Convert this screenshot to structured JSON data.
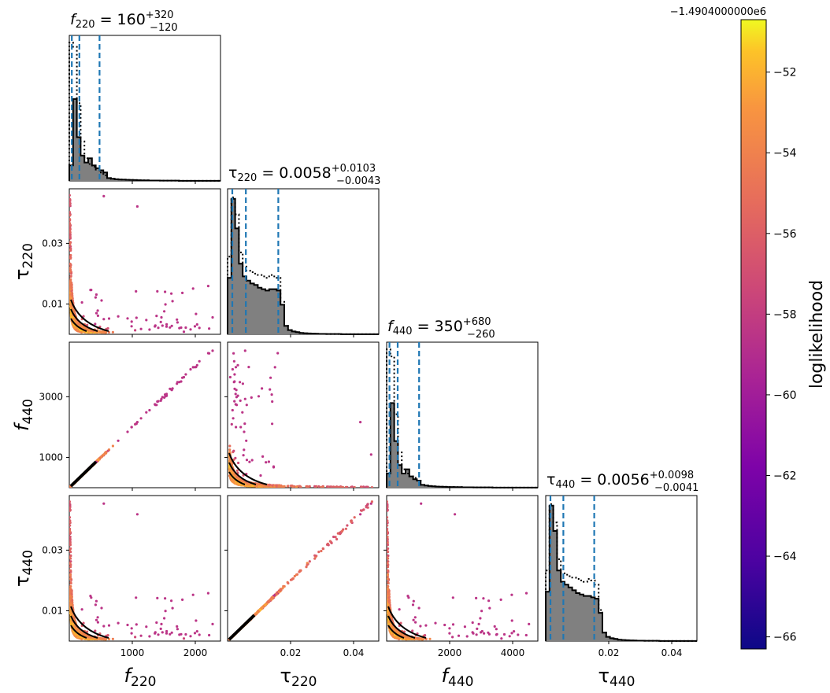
{
  "chart_data": {
    "type": "corner",
    "colorbar": {
      "label": "loglikelihood",
      "offset_text": "−1.4904000000e6",
      "range": [
        -66.3,
        -50.7
      ],
      "ticks": [
        "−52",
        "−54",
        "−56",
        "−58",
        "−60",
        "−62",
        "−64",
        "−66"
      ],
      "tick_values": [
        -52,
        -54,
        -56,
        -58,
        -60,
        -62,
        -64,
        -66
      ],
      "colormap": "plasma"
    },
    "parameters": [
      {
        "key": "f220",
        "base": "f",
        "sub": "220",
        "italic": true,
        "range": [
          0,
          2400
        ],
        "xticks": [
          {
            "v": 1000,
            "label": "1000"
          },
          {
            "v": 2000,
            "label": "2000"
          }
        ],
        "yticks": [
          {
            "v": 1000,
            "label": "1000"
          },
          {
            "v": 3000,
            "label": "3000"
          }
        ],
        "median": "160",
        "plus": "+320",
        "minus": "−120",
        "quantiles": [
          40,
          160,
          480
        ]
      },
      {
        "key": "tau220",
        "base": "τ",
        "sub": "220",
        "italic": false,
        "range": [
          0,
          0.048
        ],
        "xticks": [
          {
            "v": 0.02,
            "label": "0.02"
          },
          {
            "v": 0.04,
            "label": "0.04"
          }
        ],
        "yticks": [
          {
            "v": 0.01,
            "label": "0.01"
          },
          {
            "v": 0.03,
            "label": "0.03"
          }
        ],
        "median": "0.0058",
        "plus": "+0.0103",
        "minus": "−0.0043",
        "quantiles": [
          0.0015,
          0.0058,
          0.0161
        ]
      },
      {
        "key": "f440",
        "base": "f",
        "sub": "440",
        "italic": true,
        "range": [
          0,
          4800
        ],
        "xticks": [
          {
            "v": 2000,
            "label": "2000"
          },
          {
            "v": 4000,
            "label": "4000"
          }
        ],
        "yticks": [
          {
            "v": 1000,
            "label": "1000"
          },
          {
            "v": 3000,
            "label": "3000"
          }
        ],
        "median": "350",
        "plus": "+680",
        "minus": "−260",
        "quantiles": [
          90,
          350,
          1030
        ]
      },
      {
        "key": "tau440",
        "base": "τ",
        "sub": "440",
        "italic": false,
        "range": [
          0,
          0.048
        ],
        "xticks": [
          {
            "v": 0.02,
            "label": "0.02"
          },
          {
            "v": 0.04,
            "label": "0.04"
          }
        ],
        "yticks": [
          {
            "v": 0.01,
            "label": "0.01"
          },
          {
            "v": 0.03,
            "label": "0.03"
          }
        ],
        "median": "0.0056",
        "plus": "+0.0098",
        "minus": "−0.0041",
        "quantiles": [
          0.0015,
          0.0056,
          0.0154
        ]
      }
    ],
    "diagonal_histograms": [
      {
        "param": "f220",
        "bin_width": 60,
        "filled": [
          0.11,
          0.58,
          0.31,
          0.18,
          0.13,
          0.16,
          0.11,
          0.09,
          0.075,
          0.06,
          0.02,
          0.015,
          0.012,
          0.01,
          0.009,
          0.008,
          0.007,
          0.006,
          0.005,
          0.004,
          0.004,
          0.003,
          0.003,
          0.003,
          0.002,
          0.002,
          0.002,
          0.002,
          0.002,
          0.001,
          0.001,
          0.001,
          0.001,
          0.001,
          0.001,
          0.001,
          0.001,
          0.001,
          0.001,
          0.001
        ],
        "dotted": [
          0.98,
          0.95,
          0.55,
          0.28,
          0.16,
          0.12,
          0.1,
          0.08,
          0.06,
          0.04,
          0.02,
          0.015,
          0.012,
          0.01,
          0.009,
          0.008,
          0.007,
          0.006,
          0.005,
          0.004,
          0.004,
          0.003,
          0.003,
          0.003,
          0.002,
          0.002,
          0.002,
          0.002,
          0.002,
          0.001,
          0.001,
          0.001,
          0.001,
          0.001,
          0.001,
          0.001,
          0.001,
          0.001,
          0.001,
          0.001
        ]
      },
      {
        "param": "tau220",
        "bin_width": 0.0012,
        "filled": [
          0.4,
          0.96,
          0.75,
          0.5,
          0.41,
          0.38,
          0.36,
          0.35,
          0.33,
          0.32,
          0.31,
          0.32,
          0.32,
          0.31,
          0.21,
          0.06,
          0.03,
          0.02,
          0.015,
          0.01,
          0.008,
          0.006,
          0.005,
          0.004,
          0.003,
          0.003,
          0.002,
          0.002,
          0.002,
          0.002,
          0.001,
          0.001,
          0.001,
          0.001,
          0.001,
          0.001,
          0.001,
          0.001,
          0.001,
          0.001
        ],
        "dotted": [
          0.55,
          0.97,
          0.85,
          0.58,
          0.48,
          0.45,
          0.44,
          0.43,
          0.42,
          0.41,
          0.4,
          0.42,
          0.41,
          0.4,
          0.23,
          0.06,
          0.03,
          0.02,
          0.015,
          0.01,
          0.008,
          0.006,
          0.005,
          0.004,
          0.003,
          0.003,
          0.002,
          0.002,
          0.002,
          0.002,
          0.001,
          0.001,
          0.001,
          0.001,
          0.001,
          0.001,
          0.001,
          0.001,
          0.001,
          0.001
        ]
      },
      {
        "param": "f440",
        "bin_width": 120,
        "filled": [
          0.1,
          0.6,
          0.33,
          0.16,
          0.1,
          0.13,
          0.08,
          0.06,
          0.05,
          0.02,
          0.015,
          0.012,
          0.01,
          0.008,
          0.007,
          0.006,
          0.005,
          0.005,
          0.004,
          0.004,
          0.003,
          0.003,
          0.003,
          0.002,
          0.002,
          0.002,
          0.002,
          0.002,
          0.001,
          0.001,
          0.001,
          0.001,
          0.001,
          0.001,
          0.001,
          0.001,
          0.001,
          0.001,
          0.001,
          0.001
        ],
        "dotted": [
          0.98,
          0.93,
          0.52,
          0.25,
          0.13,
          0.1,
          0.08,
          0.07,
          0.05,
          0.02,
          0.015,
          0.012,
          0.01,
          0.008,
          0.007,
          0.006,
          0.005,
          0.005,
          0.004,
          0.004,
          0.003,
          0.003,
          0.003,
          0.002,
          0.002,
          0.002,
          0.002,
          0.002,
          0.001,
          0.001,
          0.001,
          0.001,
          0.001,
          0.001,
          0.001,
          0.001,
          0.001,
          0.001,
          0.001,
          0.001
        ]
      },
      {
        "param": "tau440",
        "bin_width": 0.0012,
        "filled": [
          0.35,
          0.96,
          0.78,
          0.5,
          0.42,
          0.4,
          0.38,
          0.36,
          0.34,
          0.33,
          0.32,
          0.32,
          0.31,
          0.3,
          0.2,
          0.06,
          0.03,
          0.02,
          0.015,
          0.01,
          0.008,
          0.006,
          0.005,
          0.004,
          0.003,
          0.003,
          0.002,
          0.002,
          0.002,
          0.002,
          0.001,
          0.001,
          0.001,
          0.001,
          0.001,
          0.001,
          0.001,
          0.001,
          0.001,
          0.001
        ],
        "dotted": [
          0.5,
          0.97,
          0.84,
          0.58,
          0.48,
          0.47,
          0.46,
          0.45,
          0.44,
          0.43,
          0.42,
          0.44,
          0.43,
          0.4,
          0.22,
          0.06,
          0.03,
          0.02,
          0.015,
          0.01,
          0.008,
          0.006,
          0.005,
          0.004,
          0.003,
          0.003,
          0.002,
          0.002,
          0.002,
          0.002,
          0.001,
          0.001,
          0.001,
          0.001,
          0.001,
          0.001,
          0.001,
          0.001,
          0.001,
          0.001
        ]
      }
    ],
    "relations": {
      "f440_vs_f220": "linear, slope 2",
      "tau440_vs_tau220": "linear, slope 1",
      "tau_vs_f": "inverse (decreasing), dense near origin"
    },
    "styles": {
      "quantile_line_color": "#1f77b4",
      "hist_fill_color": "#808080",
      "contour_color": "#000000"
    }
  }
}
